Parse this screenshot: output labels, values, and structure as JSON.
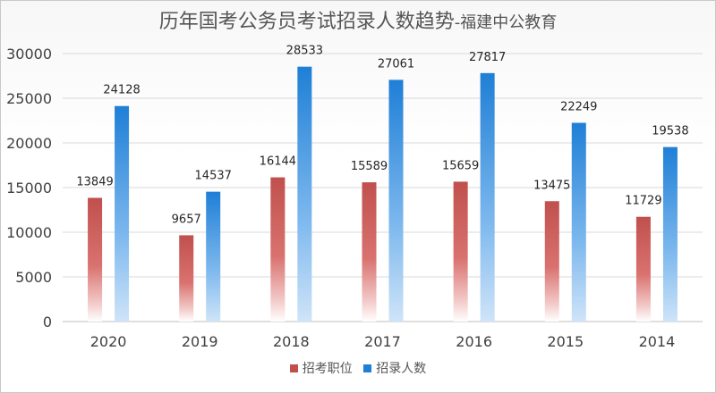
{
  "chart_data": {
    "type": "bar",
    "title": "历年国考公务员考试招录人数趋势",
    "subtitle": "-福建中公教育",
    "categories": [
      "2020",
      "2019",
      "2018",
      "2017",
      "2016",
      "2015",
      "2014"
    ],
    "series": [
      {
        "name": "招考职位",
        "values": [
          13849,
          9657,
          16144,
          15589,
          15659,
          13475,
          11729
        ],
        "color": "#c0504d"
      },
      {
        "name": "招录人数",
        "values": [
          24128,
          14537,
          28533,
          27061,
          27817,
          22249,
          19538
        ],
        "color": "#1f7fd6"
      }
    ],
    "ylim": [
      0,
      30000
    ],
    "yticks": [
      0,
      5000,
      10000,
      15000,
      20000,
      25000,
      30000
    ],
    "grid": true,
    "legend": "bottom"
  }
}
